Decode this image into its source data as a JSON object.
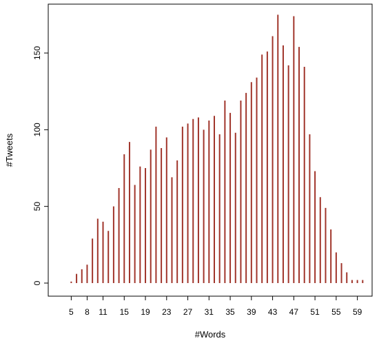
{
  "chart_data": {
    "type": "bar",
    "xlabel": "#Words",
    "ylabel": "#Tweets",
    "x": [
      3,
      4,
      5,
      6,
      7,
      8,
      9,
      10,
      11,
      12,
      13,
      14,
      15,
      16,
      17,
      18,
      19,
      20,
      21,
      22,
      23,
      24,
      25,
      26,
      27,
      28,
      29,
      30,
      31,
      32,
      33,
      34,
      35,
      36,
      37,
      38,
      39,
      40,
      41,
      42,
      43,
      44,
      45,
      46,
      47,
      48,
      49,
      50,
      51,
      52,
      53,
      54,
      55,
      56,
      57,
      58,
      59,
      60,
      61
    ],
    "values": [
      0,
      0,
      1,
      6,
      9,
      12,
      29,
      42,
      40,
      34,
      50,
      62,
      84,
      92,
      64,
      76,
      75,
      87,
      102,
      88,
      95,
      69,
      80,
      102,
      104,
      107,
      108,
      100,
      106,
      109,
      97,
      119,
      111,
      98,
      119,
      124,
      131,
      134,
      149,
      151,
      161,
      175,
      155,
      142,
      174,
      154,
      141,
      97,
      73,
      56,
      49,
      35,
      20,
      13,
      7,
      2,
      2,
      2,
      0
    ],
    "x_ticks": [
      "5",
      "8",
      "11",
      "15",
      "19",
      "23",
      "27",
      "31",
      "35",
      "39",
      "43",
      "47",
      "51",
      "55",
      "59"
    ],
    "y_ticks": [
      "0",
      "50",
      "100",
      "150"
    ],
    "ylim": [
      0,
      175
    ],
    "bar_color": "#a0342a"
  }
}
